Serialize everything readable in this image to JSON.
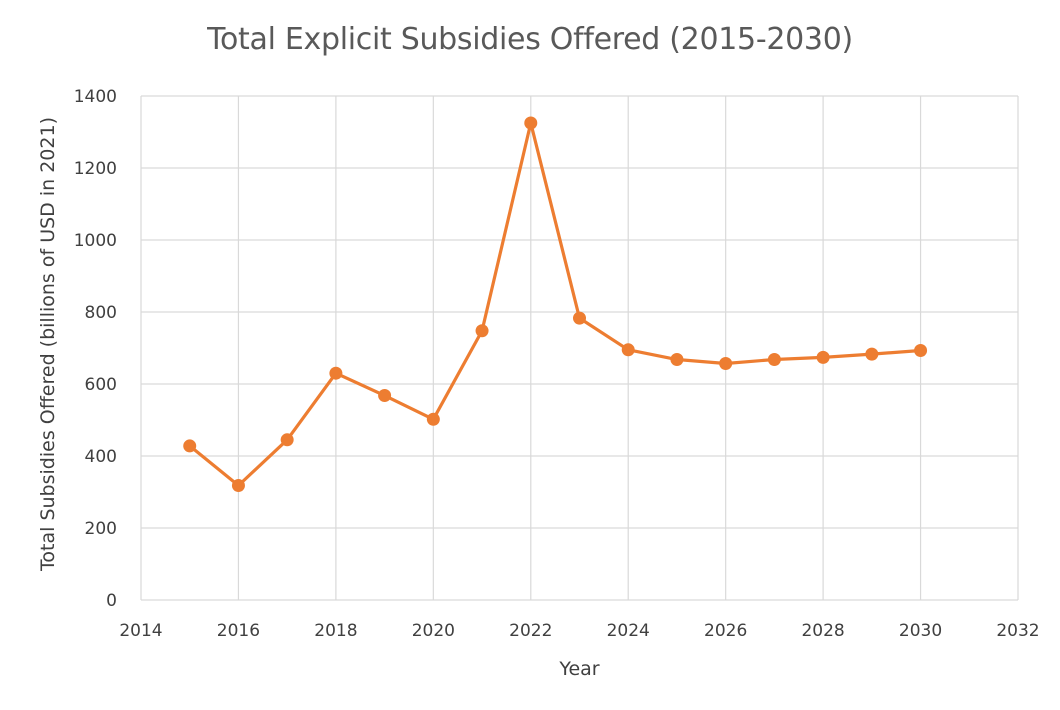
{
  "chart_data": {
    "type": "scatter",
    "title": "Total Explicit Subsidies Offered (2015-2030)",
    "xlabel": "Year",
    "ylabel": "Total Subsidies Offered (billions of USD in 2021)",
    "xlim": [
      2014,
      2032
    ],
    "ylim": [
      0,
      1400
    ],
    "x_ticks": [
      2014,
      2016,
      2018,
      2020,
      2022,
      2024,
      2026,
      2028,
      2030,
      2032
    ],
    "y_ticks": [
      0,
      200,
      400,
      600,
      800,
      1000,
      1200,
      1400
    ],
    "grid": true,
    "series": [
      {
        "x": [
          2015,
          2016,
          2017,
          2018,
          2019,
          2020,
          2021,
          2022,
          2023,
          2024,
          2025,
          2026,
          2027,
          2028,
          2029,
          2030
        ],
        "values": [
          428,
          318,
          445,
          630,
          568,
          502,
          748,
          1325,
          783,
          695,
          668,
          657,
          668,
          674,
          683,
          693
        ],
        "color": "#ED7D31",
        "markers": true,
        "lines": true
      }
    ]
  }
}
